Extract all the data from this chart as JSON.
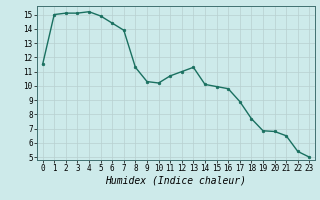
{
  "x": [
    0,
    1,
    2,
    3,
    4,
    5,
    6,
    7,
    8,
    9,
    10,
    11,
    12,
    13,
    14,
    15,
    16,
    17,
    18,
    19,
    20,
    21,
    22,
    23
  ],
  "y": [
    11.5,
    15.0,
    15.1,
    15.1,
    15.2,
    14.9,
    14.4,
    13.9,
    11.3,
    10.3,
    10.2,
    10.7,
    11.0,
    11.3,
    10.1,
    9.95,
    9.8,
    8.9,
    7.7,
    6.85,
    6.8,
    6.5,
    5.4,
    5.0
  ],
  "line_color": "#1a7060",
  "marker": "o",
  "markersize": 2.0,
  "linewidth": 1.0,
  "xlabel": "Humidex (Indice chaleur)",
  "xlabel_fontsize": 7,
  "xlim": [
    -0.5,
    23.5
  ],
  "ylim": [
    4.8,
    15.6
  ],
  "yticks": [
    5,
    6,
    7,
    8,
    9,
    10,
    11,
    12,
    13,
    14,
    15
  ],
  "xticks": [
    0,
    1,
    2,
    3,
    4,
    5,
    6,
    7,
    8,
    9,
    10,
    11,
    12,
    13,
    14,
    15,
    16,
    17,
    18,
    19,
    20,
    21,
    22,
    23
  ],
  "bg_color": "#cdeaea",
  "grid_color": "#b8d0d0",
  "tick_fontsize": 5.5,
  "spine_color": "#407070"
}
